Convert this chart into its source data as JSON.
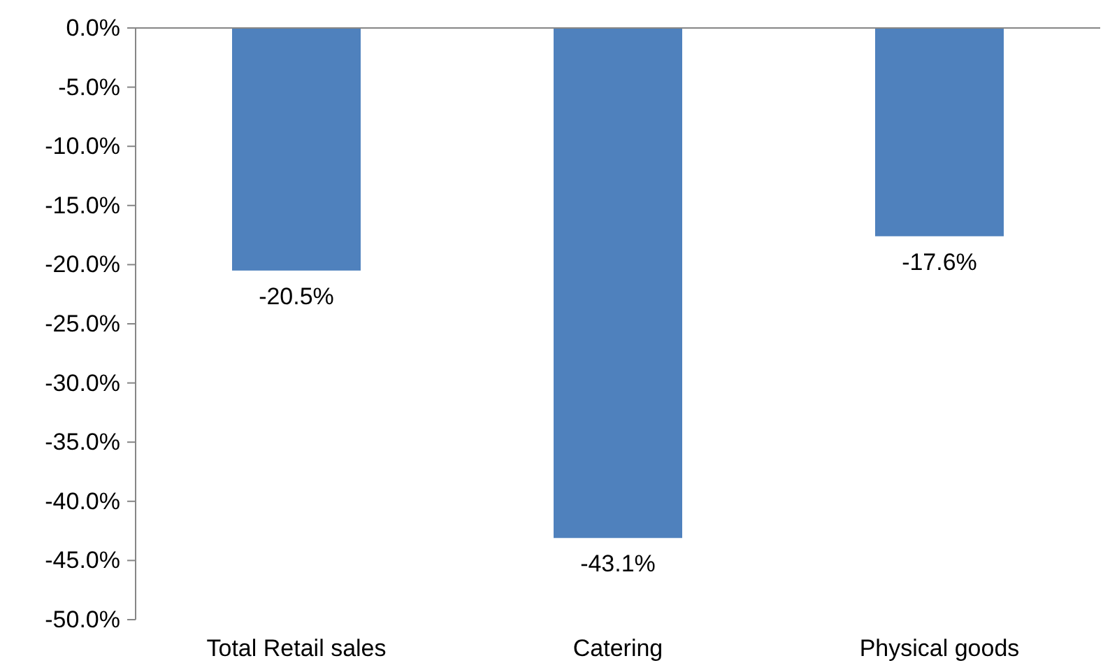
{
  "chart_data": {
    "type": "bar",
    "categories": [
      "Total Retail sales",
      "Catering",
      "Physical goods"
    ],
    "values": [
      -20.5,
      -43.1,
      -17.6
    ],
    "color": "#4f81bd",
    "value_labels": [
      "-20.5%",
      "-43.1%",
      "-17.6%"
    ],
    "ylim": [
      -50,
      0
    ],
    "yticks": [
      {
        "value": 0,
        "label": "0.0%"
      },
      {
        "value": -5,
        "label": "-5.0%"
      },
      {
        "value": -10,
        "label": "-10.0%"
      },
      {
        "value": -15,
        "label": "-15.0%"
      },
      {
        "value": -20,
        "label": "-20.0%"
      },
      {
        "value": -25,
        "label": "-25.0%"
      },
      {
        "value": -30,
        "label": "-30.0%"
      },
      {
        "value": -35,
        "label": "-35.0%"
      },
      {
        "value": -40,
        "label": "-40.0%"
      },
      {
        "value": -45,
        "label": "-45.0%"
      },
      {
        "value": -50,
        "label": "-50.0%"
      }
    ],
    "grid": false
  }
}
